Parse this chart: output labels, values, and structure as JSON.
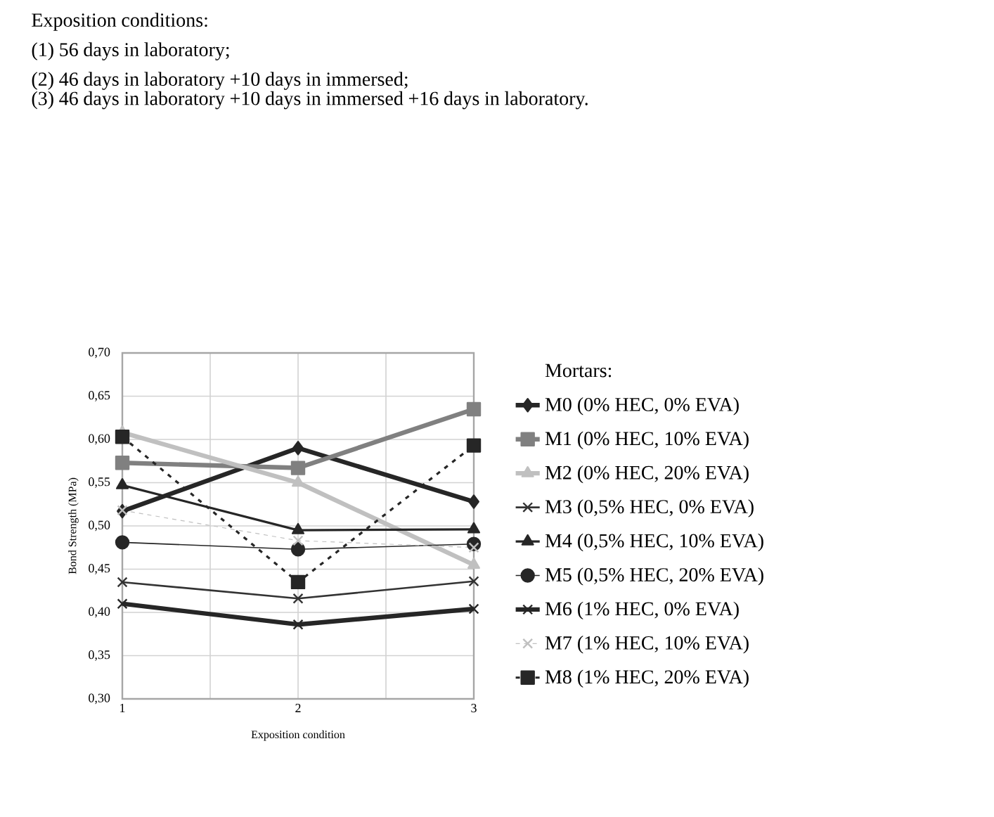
{
  "chart_data": {
    "type": "line",
    "title": "Exposition conditions:",
    "annotations": [
      "(1) 56 days in laboratory;",
      "(2) 46 days in laboratory +10 days in immersed;",
      "(3) 46 days in laboratory +10 days in immersed +16 days in laboratory."
    ],
    "xlabel": "Exposition condition",
    "ylabel": "Bond Strength (MPa)",
    "legend_title": "Mortars:",
    "x": [
      1,
      2,
      3
    ],
    "xlim": [
      1,
      3
    ],
    "xticks": [
      1,
      {
        "value": 1.5,
        "label": null
      },
      2,
      {
        "value": 2.5,
        "label": null
      },
      3
    ],
    "ylim": [
      0.3,
      0.7
    ],
    "yticks": [
      {
        "value": 0.3,
        "label": "0,30"
      },
      {
        "value": 0.35,
        "label": "0,35"
      },
      {
        "value": 0.4,
        "label": "0,40"
      },
      {
        "value": 0.45,
        "label": "0,45"
      },
      {
        "value": 0.5,
        "label": "0,50"
      },
      {
        "value": 0.55,
        "label": "0,55"
      },
      {
        "value": 0.6,
        "label": "0,60"
      },
      {
        "value": 0.65,
        "label": "0,65"
      },
      {
        "value": 0.7,
        "label": "0,70"
      }
    ],
    "grid": true,
    "legend": "right",
    "series": [
      {
        "name": "M0 (0% HEC, 0% EVA)",
        "color": "#262626",
        "marker": "diamond",
        "line_style": "solid",
        "values": [
          0.517,
          0.59,
          0.528
        ]
      },
      {
        "name": "M1 (0% HEC, 10% EVA)",
        "color": "#808080",
        "marker": "square",
        "line_style": "solid",
        "values": [
          0.573,
          0.567,
          0.635
        ]
      },
      {
        "name": "M2 (0% HEC, 20% EVA)",
        "color": "#c0c0c0",
        "marker": "triangle",
        "line_style": "solid",
        "values": [
          0.608,
          0.55,
          0.455
        ]
      },
      {
        "name": "M3 (0,5% HEC, 0% EVA)",
        "color": "#333333",
        "marker": "cross",
        "line_style": "solid",
        "values": [
          0.435,
          0.416,
          0.436
        ]
      },
      {
        "name": "M4 (0,5% HEC, 10% EVA)",
        "color": "#262626",
        "marker": "triangle",
        "line_style": "solid",
        "values": [
          0.547,
          0.495,
          0.496
        ]
      },
      {
        "name": "M5 (0,5% HEC, 20% EVA)",
        "color": "#262626",
        "marker": "circle",
        "line_style": "solid",
        "values": [
          0.481,
          0.473,
          0.479
        ]
      },
      {
        "name": "M6 (1% HEC, 0% EVA)",
        "color": "#262626",
        "marker": "cross",
        "line_style": "solid",
        "values": [
          0.41,
          0.386,
          0.404
        ]
      },
      {
        "name": "M7 (1% HEC, 10% EVA)",
        "color": "#c0c0c0",
        "marker": "cross",
        "line_style": "dashed",
        "values": [
          0.518,
          0.483,
          0.475
        ]
      },
      {
        "name": "M8 (1% HEC, 20% EVA)",
        "color": "#262626",
        "marker": "square",
        "line_style": "dotted",
        "values": [
          0.603,
          0.435,
          0.593
        ]
      }
    ]
  }
}
